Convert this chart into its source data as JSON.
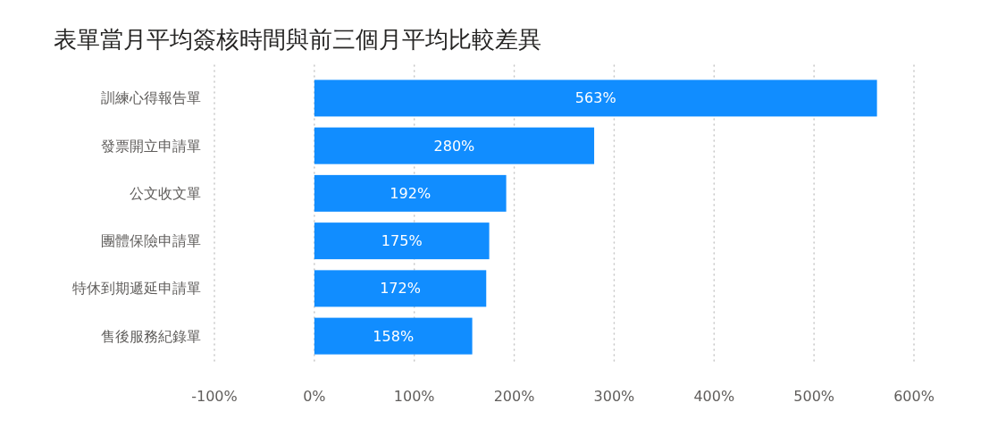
{
  "chart_data": {
    "type": "bar",
    "orientation": "horizontal",
    "title": "表單當月平均簽核時間與前三個月平均比較差異",
    "categories": [
      "訓練心得報告單",
      "發票開立申請單",
      "公文收文單",
      "團體保險申請單",
      "特休到期遞延申請單",
      "售後服務紀錄單"
    ],
    "values": [
      563,
      280,
      192,
      175,
      172,
      158
    ],
    "value_labels": [
      "563%",
      "280%",
      "192%",
      "175%",
      "172%",
      "158%"
    ],
    "color": "#118dff",
    "xlim": [
      -100,
      600
    ],
    "xticks": [
      {
        "value": -100,
        "label": "-100%"
      },
      {
        "value": 0,
        "label": "0%"
      },
      {
        "value": 100,
        "label": "100%"
      },
      {
        "value": 200,
        "label": "200%"
      },
      {
        "value": 300,
        "label": "300%"
      },
      {
        "value": 400,
        "label": "400%"
      },
      {
        "value": 500,
        "label": "500%"
      },
      {
        "value": 600,
        "label": "600%"
      }
    ],
    "grid": "x"
  }
}
